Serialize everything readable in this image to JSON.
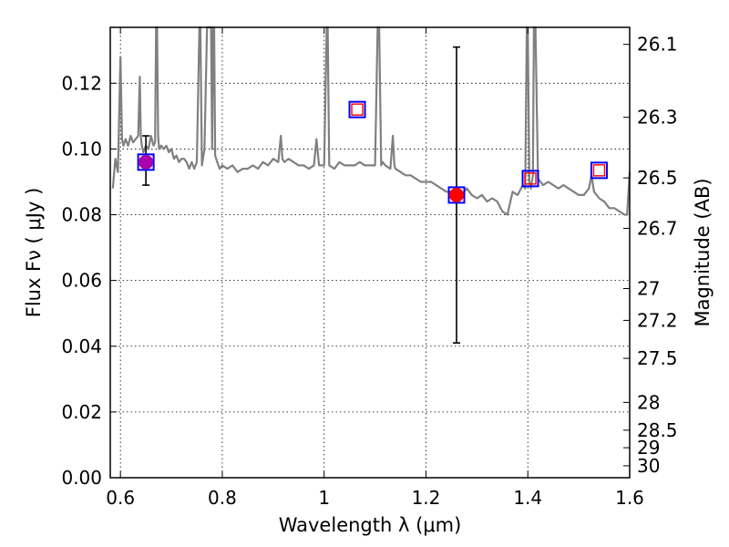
{
  "chart_data": {
    "type": "scatter",
    "xlabel": "Wavelength  λ (μm)",
    "ylabel": "Flux  Fν  ( μJy )",
    "y2label": "Magnitude (AB)",
    "xlim": [
      0.58,
      1.6
    ],
    "ylim": [
      0.0,
      0.137
    ],
    "grid": true,
    "x_ticks": [
      0.6,
      0.8,
      1.0,
      1.2,
      1.4,
      1.6
    ],
    "x_tick_labels": [
      "0.6",
      "0.8",
      "1",
      "1.2",
      "1.4",
      "1.6"
    ],
    "y_ticks": [
      0.0,
      0.02,
      0.04,
      0.06,
      0.08,
      0.1,
      0.12
    ],
    "y_tick_labels": [
      "0.00",
      "0.02",
      "0.04",
      "0.06",
      "0.08",
      "0.10",
      "0.12"
    ],
    "mag_ticks": [
      26.1,
      26.3,
      26.5,
      26.7,
      27,
      27.2,
      27.5,
      28,
      28.5,
      29,
      30
    ],
    "mag_tick_labels": [
      "26.1",
      "26.3",
      "26.5",
      "26.7",
      "27",
      "27.2",
      "27.5",
      "28",
      "28.5",
      "29",
      "30"
    ],
    "series": [
      {
        "kind": "spectrum",
        "color": "#808080",
        "x": [
          0.585,
          0.59,
          0.595,
          0.6,
          0.603,
          0.606,
          0.61,
          0.615,
          0.62,
          0.625,
          0.63,
          0.635,
          0.638,
          0.64,
          0.642,
          0.645,
          0.65,
          0.655,
          0.66,
          0.665,
          0.668,
          0.67,
          0.672,
          0.674,
          0.676,
          0.68,
          0.685,
          0.69,
          0.695,
          0.7,
          0.705,
          0.71,
          0.715,
          0.72,
          0.725,
          0.73,
          0.735,
          0.74,
          0.745,
          0.75,
          0.755,
          0.757,
          0.76,
          0.765,
          0.77,
          0.775,
          0.778,
          0.78,
          0.782,
          0.784,
          0.786,
          0.79,
          0.795,
          0.8,
          0.81,
          0.82,
          0.83,
          0.84,
          0.85,
          0.86,
          0.87,
          0.88,
          0.89,
          0.9,
          0.91,
          0.915,
          0.918,
          0.922,
          0.93,
          0.94,
          0.95,
          0.96,
          0.97,
          0.98,
          0.985,
          0.99,
          1.0,
          1.005,
          1.007,
          1.01,
          1.02,
          1.03,
          1.04,
          1.05,
          1.06,
          1.07,
          1.08,
          1.09,
          1.1,
          1.105,
          1.108,
          1.112,
          1.115,
          1.12,
          1.13,
          1.135,
          1.138,
          1.14,
          1.15,
          1.16,
          1.17,
          1.18,
          1.19,
          1.2,
          1.21,
          1.22,
          1.23,
          1.24,
          1.25,
          1.26,
          1.27,
          1.28,
          1.29,
          1.3,
          1.31,
          1.32,
          1.33,
          1.34,
          1.35,
          1.36,
          1.37,
          1.38,
          1.39,
          1.395,
          1.398,
          1.4,
          1.403,
          1.406,
          1.41,
          1.412,
          1.415,
          1.42,
          1.43,
          1.44,
          1.45,
          1.46,
          1.47,
          1.48,
          1.49,
          1.5,
          1.51,
          1.52,
          1.525,
          1.53,
          1.54,
          1.55,
          1.56,
          1.57,
          1.58,
          1.59,
          1.595,
          1.6
        ],
        "y": [
          0.088,
          0.097,
          0.093,
          0.128,
          0.103,
          0.101,
          0.103,
          0.101,
          0.104,
          0.102,
          0.103,
          0.104,
          0.122,
          0.104,
          0.101,
          0.099,
          0.101,
          0.1,
          0.104,
          0.101,
          0.102,
          0.137,
          0.137,
          0.104,
          0.1,
          0.101,
          0.1,
          0.101,
          0.099,
          0.1,
          0.097,
          0.098,
          0.096,
          0.097,
          0.097,
          0.096,
          0.094,
          0.096,
          0.094,
          0.096,
          0.137,
          0.137,
          0.095,
          0.1,
          0.137,
          0.137,
          0.137,
          0.1,
          0.137,
          0.137,
          0.098,
          0.096,
          0.094,
          0.095,
          0.094,
          0.095,
          0.093,
          0.094,
          0.094,
          0.095,
          0.094,
          0.096,
          0.095,
          0.097,
          0.096,
          0.104,
          0.097,
          0.096,
          0.097,
          0.096,
          0.095,
          0.095,
          0.094,
          0.095,
          0.103,
          0.095,
          0.095,
          0.137,
          0.137,
          0.095,
          0.094,
          0.096,
          0.095,
          0.095,
          0.095,
          0.096,
          0.095,
          0.095,
          0.095,
          0.137,
          0.137,
          0.095,
          0.096,
          0.095,
          0.094,
          0.104,
          0.095,
          0.094,
          0.093,
          0.092,
          0.092,
          0.091,
          0.09,
          0.09,
          0.09,
          0.089,
          0.088,
          0.087,
          0.087,
          0.087,
          0.086,
          0.088,
          0.086,
          0.085,
          0.086,
          0.084,
          0.085,
          0.084,
          0.081,
          0.08,
          0.087,
          0.086,
          0.089,
          0.088,
          0.137,
          0.137,
          0.09,
          0.088,
          0.092,
          0.137,
          0.137,
          0.091,
          0.089,
          0.09,
          0.089,
          0.088,
          0.089,
          0.088,
          0.087,
          0.086,
          0.086,
          0.088,
          0.092,
          0.087,
          0.085,
          0.084,
          0.082,
          0.082,
          0.081,
          0.08,
          0.08,
          0.093
        ]
      },
      {
        "kind": "model-photometry",
        "marker": "open-square",
        "color": "#0000ff",
        "x": [
          0.65,
          1.065,
          1.26,
          1.405,
          1.54
        ],
        "y": [
          0.096,
          0.112,
          0.086,
          0.091,
          0.0935
        ]
      },
      {
        "kind": "model-photometry-inner",
        "marker": "open-square-small",
        "color": "#ff0000",
        "x": [
          1.065,
          1.405,
          1.54
        ],
        "y": [
          0.112,
          0.091,
          0.0935
        ]
      },
      {
        "kind": "observed",
        "marker": "filled-circle",
        "x": [
          0.65,
          1.26
        ],
        "y": [
          0.096,
          0.086
        ],
        "yerr_low": [
          0.089,
          0.041
        ],
        "yerr_high": [
          0.104,
          0.131
        ],
        "colors": [
          "#aa00aa",
          "#ff0000"
        ]
      }
    ]
  }
}
